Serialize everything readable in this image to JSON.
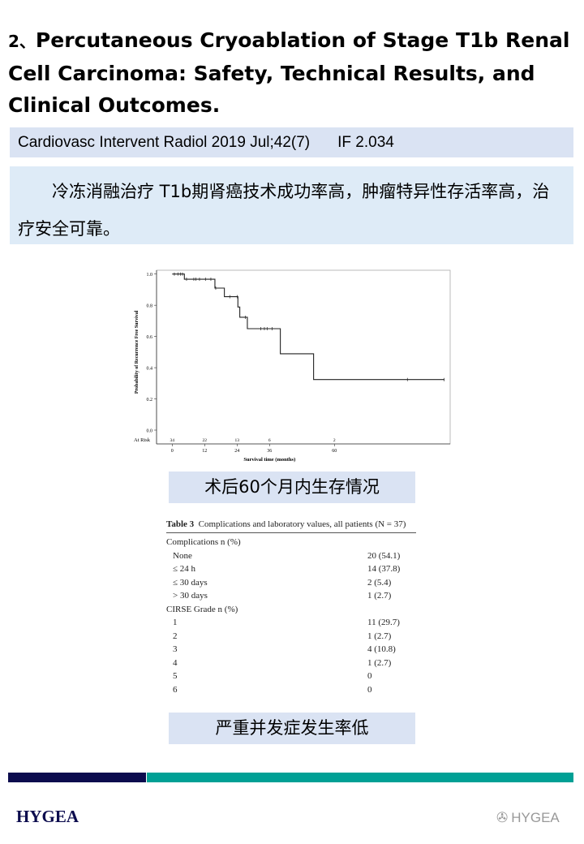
{
  "title": {
    "number": "2、",
    "text": "Percutaneous Cryoablation of Stage T1b Renal Cell Carcinoma: Safety, Technical Results, and Clinical Outcomes."
  },
  "citation": {
    "journal": "Cardiovasc Intervent Radiol 2019 Jul;42(7)",
    "impact_factor": "IF 2.034"
  },
  "summary": "冷冻消融治疗 T1b期肾癌技术成功率高，肿瘤特异性存活率高，治疗安全可靠。",
  "caption_survival": "术后60个月内生存情况",
  "caption_complications": "严重并发症发生率低",
  "chart_data": {
    "type": "line",
    "subtype": "kaplan-meier step",
    "xlabel": "Survival time (months)",
    "ylabel": "Probability of Recurrence Free Survival",
    "x_ticks": [
      0,
      12,
      24,
      36,
      60
    ],
    "y_ticks": [
      "0.0",
      "0.2",
      "0.4",
      "0.6",
      "0.8",
      "1.0"
    ],
    "xlim": [
      -17,
      102
    ],
    "ylim": [
      0,
      1
    ],
    "grid": false,
    "steps": [
      [
        0,
        1.0
      ],
      [
        4.5,
        0.967
      ],
      [
        15.8,
        0.91
      ],
      [
        19.3,
        0.855
      ],
      [
        24.3,
        0.789
      ],
      [
        25,
        0.723
      ],
      [
        27.8,
        0.65
      ],
      [
        40,
        0.489
      ],
      [
        52.3,
        0.324
      ],
      [
        100.6,
        0.324
      ]
    ],
    "censored": [
      [
        0.8,
        1.0
      ],
      [
        2.1,
        1.0
      ],
      [
        3.1,
        1.0
      ],
      [
        3.8,
        1.0
      ],
      [
        5.3,
        0.967
      ],
      [
        8,
        0.967
      ],
      [
        8.8,
        0.967
      ],
      [
        10.1,
        0.967
      ],
      [
        12.3,
        0.967
      ],
      [
        14.3,
        0.967
      ],
      [
        16.1,
        0.91
      ],
      [
        21.3,
        0.855
      ],
      [
        24.1,
        0.855
      ],
      [
        27.1,
        0.723
      ],
      [
        32.8,
        0.65
      ],
      [
        34.1,
        0.65
      ],
      [
        35.1,
        0.65
      ],
      [
        37,
        0.65
      ],
      [
        87,
        0.324
      ],
      [
        100.6,
        0.324
      ]
    ],
    "at_risk_label": "At Risk",
    "at_risk": [
      {
        "x": 0,
        "n": "34"
      },
      {
        "x": 12,
        "n": "22"
      },
      {
        "x": 24,
        "n": "13"
      },
      {
        "x": 36,
        "n": "6"
      },
      {
        "x": 60,
        "n": "2"
      }
    ]
  },
  "table": {
    "caption_bold": "Table 3",
    "caption": "Complications and laboratory values, all patients (N = 37)",
    "rows": [
      {
        "label": "Complications n (%)",
        "value": "",
        "sub": false
      },
      {
        "label": "None",
        "value": "20 (54.1)",
        "sub": true
      },
      {
        "label": "≤ 24 h",
        "value": "14 (37.8)",
        "sub": true
      },
      {
        "label": "≤ 30 days",
        "value": "2 (5.4)",
        "sub": true
      },
      {
        "label": "> 30 days",
        "value": "1 (2.7)",
        "sub": true
      },
      {
        "label": "CIRSE Grade n (%)",
        "value": "",
        "sub": false
      },
      {
        "label": "1",
        "value": "11 (29.7)",
        "sub": true
      },
      {
        "label": "2",
        "value": "1 (2.7)",
        "sub": true
      },
      {
        "label": "3",
        "value": "4 (10.8)",
        "sub": true
      },
      {
        "label": "4",
        "value": "1 (2.7)",
        "sub": true
      },
      {
        "label": "5",
        "value": "0",
        "sub": true
      },
      {
        "label": "6",
        "value": "0",
        "sub": true
      }
    ]
  },
  "footer": {
    "logo": "HYGEA",
    "watermark": "HYGEA",
    "colors": {
      "navy": "#0c0c4e",
      "teal": "#00a095"
    }
  }
}
